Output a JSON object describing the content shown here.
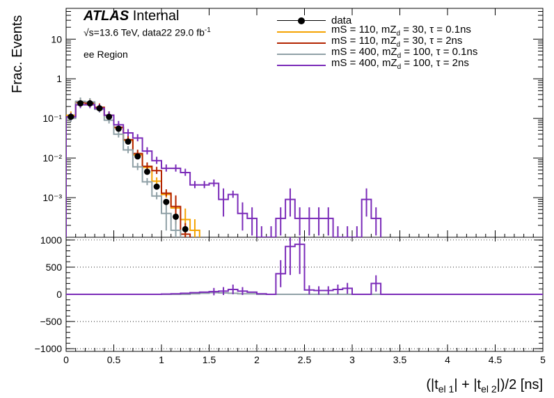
{
  "header": {
    "atlas_bold": "ATLAS",
    "atlas_rest": " Internal",
    "energy": "√s=13.6 TeV, data22 29.0 fb",
    "energy_sup": "-1",
    "region": "ee Region"
  },
  "axes": {
    "ylabel": "Frac. Events",
    "xlabel": "(|t",
    "xlabel_sub1": "el 1",
    "xlabel_mid": "| + |t",
    "xlabel_sub2": "el 2",
    "xlabel_end": "|)/2 [ns]"
  },
  "legend": [
    {
      "label": "data",
      "color": "#000000",
      "style": "marker"
    },
    {
      "label": "mS = 110, mZ",
      "sub": "d",
      "rest": " = 30, τ = 0.1ns",
      "color": "#f5a300",
      "style": "line"
    },
    {
      "label": "mS = 110, mZ",
      "sub": "d",
      "rest": " = 30, τ = 2ns",
      "color": "#b32400",
      "style": "line"
    },
    {
      "label": "mS = 400, mZ",
      "sub": "d",
      "rest": " = 100, τ = 0.1ns",
      "color": "#8fa0a6",
      "style": "line"
    },
    {
      "label": "mS = 400, mZ",
      "sub": "d",
      "rest": " = 100, τ = 2ns",
      "color": "#7a2ab8",
      "style": "line"
    }
  ],
  "chart_data": {
    "type": "line",
    "x_edges": [
      0,
      0.1,
      0.2,
      0.3,
      0.4,
      0.5,
      0.6,
      0.7,
      0.8,
      0.9,
      1.0,
      1.1,
      1.2,
      1.3,
      1.4,
      1.5,
      1.6,
      1.7,
      1.8,
      1.9,
      2.0,
      2.1,
      2.2,
      2.3,
      2.4,
      2.5,
      2.6,
      2.7,
      2.8,
      2.9,
      3.0,
      3.1,
      3.2,
      3.3
    ],
    "top": {
      "ylabel": "Frac. Events",
      "yscale": "log",
      "ylim": [
        0.0001,
        60
      ],
      "yticks": [
        "10⁻³",
        "10⁻²",
        "10⁻¹",
        "1",
        "10"
      ],
      "yticks_values": [
        0.001,
        0.01,
        0.1,
        1,
        10
      ],
      "data": {
        "name": "data",
        "x": [
          0.05,
          0.15,
          0.25,
          0.35,
          0.45,
          0.55,
          0.65,
          0.75,
          0.85,
          0.95,
          1.05,
          1.15,
          1.25
        ],
        "y": [
          0.11,
          0.24,
          0.24,
          0.18,
          0.11,
          0.055,
          0.026,
          0.011,
          0.0045,
          0.0019,
          0.00078,
          0.00033,
          0.00016
        ]
      },
      "series": [
        {
          "name": "mS = 110, mZd = 30, τ = 0.1ns",
          "color": "#f5a300",
          "values": [
            0.12,
            0.26,
            0.25,
            0.19,
            0.12,
            0.058,
            0.028,
            0.012,
            0.0058,
            0.0026,
            0.0012,
            0.00055,
            0.00028,
            0.00015
          ]
        },
        {
          "name": "mS = 110, mZd = 30, τ = 2ns",
          "color": "#b32400",
          "values": [
            0.11,
            0.25,
            0.24,
            0.19,
            0.12,
            0.06,
            0.029,
            0.013,
            0.0062,
            0.0048,
            0.0013,
            0.0006,
            0.00012
          ]
        },
        {
          "name": "mS = 400, mZd = 100, τ = 0.1ns",
          "color": "#8fa0a6",
          "values": [
            0.1,
            0.27,
            0.26,
            0.17,
            0.09,
            0.04,
            0.016,
            0.006,
            0.0025,
            0.0011,
            0.0004,
            0.00015
          ]
        },
        {
          "name": "mS = 400, mZd = 100, τ = 2ns",
          "color": "#7a2ab8",
          "values": [
            0.11,
            0.22,
            0.22,
            0.18,
            0.12,
            0.069,
            0.043,
            0.032,
            0.015,
            0.0086,
            0.0055,
            0.0055,
            0.0043,
            0.0021,
            0.0021,
            0.0023,
            0.0009,
            0.0012,
            0.0004,
            0.0003,
            0.0001,
            0.0001,
            0.0003,
            0.0009,
            0.0003,
            0.0003,
            0.0003,
            0.0003,
            0.0001,
            0.0001,
            0.0001,
            0.0009,
            0.0003
          ]
        }
      ]
    },
    "bottom": {
      "ylim": [
        -1050,
        1050
      ],
      "yticks": [
        -1000,
        -500,
        0,
        500,
        1000
      ],
      "series": [
        {
          "name": "mS = 400, mZd = 100, τ = 0.1ns",
          "color": "#8fa0a6",
          "values": [
            0,
            0,
            0,
            0,
            0,
            0,
            0,
            0,
            0,
            0,
            0,
            0,
            0,
            10,
            20,
            30,
            25,
            20,
            10,
            10,
            0,
            0,
            0,
            0,
            0,
            0,
            0,
            0,
            0,
            0,
            0,
            0,
            0
          ]
        },
        {
          "name": "mS = 400, mZd = 100, τ = 2ns",
          "color": "#7a2ab8",
          "values": [
            0,
            0,
            0,
            0,
            0,
            0,
            0,
            0,
            0,
            0,
            5,
            10,
            20,
            30,
            40,
            50,
            60,
            90,
            60,
            40,
            10,
            0,
            380,
            880,
            920,
            80,
            70,
            70,
            90,
            110,
            0,
            0,
            200
          ]
        }
      ]
    },
    "xlim": [
      0,
      5
    ],
    "xticks": [
      0,
      0.5,
      1,
      1.5,
      2,
      2.5,
      3,
      3.5,
      4,
      4.5,
      5
    ]
  }
}
